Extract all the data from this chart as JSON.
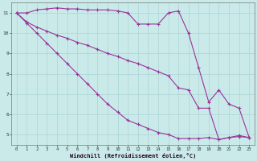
{
  "xlabel": "Windchill (Refroidissement éolien,°C)",
  "bg_color": "#caeaea",
  "grid_color": "#aad4d4",
  "line_color": "#993399",
  "xlim": [
    -0.5,
    23.5
  ],
  "ylim": [
    4.5,
    11.5
  ],
  "xticks": [
    0,
    1,
    2,
    3,
    4,
    5,
    6,
    7,
    8,
    9,
    10,
    11,
    12,
    13,
    14,
    15,
    16,
    17,
    18,
    19,
    20,
    21,
    22,
    23
  ],
  "yticks": [
    5,
    6,
    7,
    8,
    9,
    10,
    11
  ],
  "series1_x": [
    0,
    1,
    2,
    3,
    4,
    5,
    6,
    7,
    8,
    9,
    10,
    11,
    12,
    13,
    14,
    15,
    16,
    17,
    18,
    19,
    20,
    21,
    22,
    23
  ],
  "series1_y": [
    11.0,
    11.0,
    11.15,
    11.2,
    11.25,
    11.2,
    11.2,
    11.15,
    11.15,
    11.15,
    11.1,
    11.0,
    10.45,
    10.45,
    10.45,
    11.0,
    11.1,
    10.0,
    8.3,
    6.6,
    7.2,
    6.5,
    6.3,
    4.85
  ],
  "series2_x": [
    0,
    1,
    2,
    3,
    4,
    5,
    6,
    7,
    8,
    9,
    10,
    11,
    12,
    13,
    14,
    15,
    16,
    17,
    18,
    19,
    20,
    21,
    22,
    23
  ],
  "series2_y": [
    11.0,
    10.55,
    10.3,
    10.1,
    9.9,
    9.75,
    9.55,
    9.4,
    9.2,
    9.0,
    8.85,
    8.65,
    8.5,
    8.3,
    8.1,
    7.9,
    7.3,
    7.2,
    6.3,
    6.3,
    4.75,
    4.85,
    4.95,
    4.85
  ],
  "series3_x": [
    0,
    1,
    2,
    3,
    4,
    5,
    6,
    7,
    8,
    9,
    10,
    11,
    12,
    13,
    14,
    15,
    16,
    17,
    18,
    19,
    20,
    21,
    22,
    23
  ],
  "series3_y": [
    11.0,
    10.5,
    10.0,
    9.5,
    9.0,
    8.5,
    8.0,
    7.5,
    7.0,
    6.5,
    6.1,
    5.7,
    5.5,
    5.3,
    5.1,
    5.0,
    4.8,
    4.8,
    4.8,
    4.85,
    4.75,
    4.85,
    4.9,
    4.85
  ]
}
